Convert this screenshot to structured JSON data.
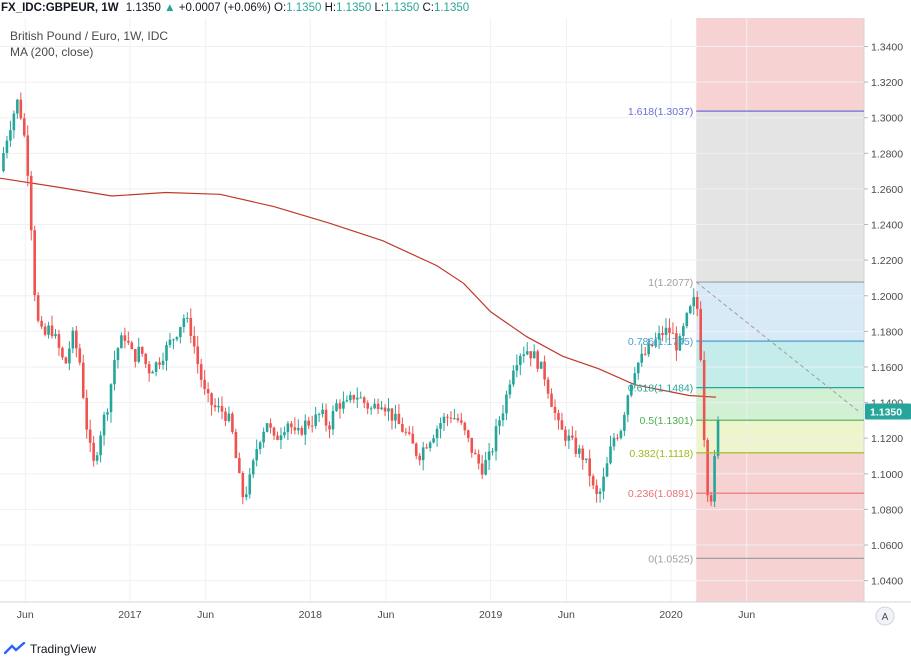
{
  "header": {
    "symbol": "FX_IDC:GBPEUR, 1W",
    "last": "1.1350",
    "arrow": "▲",
    "change": "+0.0007 (+0.06%)",
    "o_label": "O:",
    "o": "1.1350",
    "h_label": "H:",
    "h": "1.1350",
    "l_label": "L:",
    "l": "1.1350",
    "c_label": "C:",
    "c": "1.1350"
  },
  "legend": {
    "title": "British Pound / Euro, 1W, IDC",
    "indicator": "MA (200, close)"
  },
  "footer": {
    "brand": "TradingView"
  },
  "auto_scale": "A",
  "price_badge": "1.1350",
  "colors": {
    "up": "#26a69a",
    "down": "#ef5350",
    "ma": "#c0392b",
    "grid": "#eef0f3",
    "axis_text": "#4a4a4a",
    "badge": "#26a69a"
  },
  "chart_data": {
    "type": "candlestick",
    "title": "British Pound / Euro, 1W, IDC",
    "y_ticks": [
      "1.3400",
      "1.3200",
      "1.3000",
      "1.2800",
      "1.2600",
      "1.2400",
      "1.2200",
      "1.2000",
      "1.1800",
      "1.1600",
      "1.1400",
      "1.1200",
      "1.1000",
      "1.0800",
      "1.0600",
      "1.0400"
    ],
    "ylim": [
      1.028,
      1.356
    ],
    "x_ticks": [
      {
        "label": "Jun",
        "x": 2016.42
      },
      {
        "label": "2017",
        "x": 2017.0
      },
      {
        "label": "Jun",
        "x": 2017.42
      },
      {
        "label": "2018",
        "x": 2018.0
      },
      {
        "label": "Jun",
        "x": 2018.42
      },
      {
        "label": "2019",
        "x": 2019.0
      },
      {
        "label": "Jun",
        "x": 2019.42
      },
      {
        "label": "2020",
        "x": 2020.0
      },
      {
        "label": "Jun",
        "x": 2020.42
      }
    ],
    "xlim": [
      2016.28,
      2021.07
    ],
    "close_anchors": [
      [
        2016.28,
        1.27
      ],
      [
        2016.31,
        1.286
      ],
      [
        2016.35,
        1.301
      ],
      [
        2016.38,
        1.31
      ],
      [
        2016.41,
        1.294
      ],
      [
        2016.44,
        1.265
      ],
      [
        2016.48,
        1.188
      ],
      [
        2016.52,
        1.176
      ],
      [
        2016.56,
        1.183
      ],
      [
        2016.6,
        1.172
      ],
      [
        2016.64,
        1.16
      ],
      [
        2016.68,
        1.178
      ],
      [
        2016.72,
        1.165
      ],
      [
        2016.77,
        1.118
      ],
      [
        2016.8,
        1.105
      ],
      [
        2016.84,
        1.125
      ],
      [
        2016.88,
        1.14
      ],
      [
        2016.92,
        1.168
      ],
      [
        2016.97,
        1.178
      ],
      [
        2017.02,
        1.165
      ],
      [
        2017.06,
        1.17
      ],
      [
        2017.1,
        1.158
      ],
      [
        2017.15,
        1.162
      ],
      [
        2017.2,
        1.17
      ],
      [
        2017.25,
        1.178
      ],
      [
        2017.3,
        1.188
      ],
      [
        2017.34,
        1.18
      ],
      [
        2017.38,
        1.16
      ],
      [
        2017.42,
        1.143
      ],
      [
        2017.47,
        1.137
      ],
      [
        2017.52,
        1.135
      ],
      [
        2017.56,
        1.128
      ],
      [
        2017.6,
        1.1
      ],
      [
        2017.63,
        1.086
      ],
      [
        2017.67,
        1.098
      ],
      [
        2017.71,
        1.118
      ],
      [
        2017.76,
        1.13
      ],
      [
        2017.8,
        1.118
      ],
      [
        2017.84,
        1.125
      ],
      [
        2017.88,
        1.13
      ],
      [
        2017.92,
        1.12
      ],
      [
        2017.97,
        1.128
      ],
      [
        2018.02,
        1.13
      ],
      [
        2018.06,
        1.134
      ],
      [
        2018.1,
        1.126
      ],
      [
        2018.15,
        1.14
      ],
      [
        2018.2,
        1.138
      ],
      [
        2018.25,
        1.145
      ],
      [
        2018.3,
        1.14
      ],
      [
        2018.34,
        1.136
      ],
      [
        2018.39,
        1.142
      ],
      [
        2018.43,
        1.136
      ],
      [
        2018.47,
        1.13
      ],
      [
        2018.52,
        1.124
      ],
      [
        2018.56,
        1.117
      ],
      [
        2018.6,
        1.11
      ],
      [
        2018.64,
        1.117
      ],
      [
        2018.69,
        1.124
      ],
      [
        2018.73,
        1.13
      ],
      [
        2018.78,
        1.133
      ],
      [
        2018.82,
        1.13
      ],
      [
        2018.86,
        1.122
      ],
      [
        2018.91,
        1.11
      ],
      [
        2018.95,
        1.103
      ],
      [
        2019.0,
        1.11
      ],
      [
        2019.04,
        1.128
      ],
      [
        2019.08,
        1.14
      ],
      [
        2019.12,
        1.16
      ],
      [
        2019.16,
        1.168
      ],
      [
        2019.2,
        1.17
      ],
      [
        2019.25,
        1.165
      ],
      [
        2019.3,
        1.155
      ],
      [
        2019.34,
        1.14
      ],
      [
        2019.38,
        1.125
      ],
      [
        2019.43,
        1.12
      ],
      [
        2019.47,
        1.114
      ],
      [
        2019.51,
        1.11
      ],
      [
        2019.55,
        1.1
      ],
      [
        2019.58,
        1.086
      ],
      [
        2019.61,
        1.09
      ],
      [
        2019.64,
        1.102
      ],
      [
        2019.68,
        1.12
      ],
      [
        2019.72,
        1.125
      ],
      [
        2019.76,
        1.145
      ],
      [
        2019.8,
        1.16
      ],
      [
        2019.84,
        1.165
      ],
      [
        2019.88,
        1.17
      ],
      [
        2019.92,
        1.175
      ],
      [
        2019.96,
        1.18
      ],
      [
        2020.0,
        1.18
      ],
      [
        2020.04,
        1.17
      ],
      [
        2020.08,
        1.185
      ],
      [
        2020.12,
        1.195
      ],
      [
        2020.14,
        1.2
      ],
      [
        2020.17,
        1.16
      ],
      [
        2020.19,
        1.105
      ],
      [
        2020.21,
        1.085
      ],
      [
        2020.23,
        1.089
      ],
      [
        2020.25,
        1.12
      ],
      [
        2020.27,
        1.135
      ]
    ],
    "ma_200": [
      [
        2016.28,
        1.266
      ],
      [
        2016.6,
        1.261
      ],
      [
        2016.9,
        1.256
      ],
      [
        2017.2,
        1.258
      ],
      [
        2017.5,
        1.257
      ],
      [
        2017.8,
        1.25
      ],
      [
        2018.1,
        1.241
      ],
      [
        2018.4,
        1.231
      ],
      [
        2018.7,
        1.217
      ],
      [
        2018.85,
        1.207
      ],
      [
        2019.0,
        1.191
      ],
      [
        2019.2,
        1.177
      ],
      [
        2019.4,
        1.166
      ],
      [
        2019.6,
        1.159
      ],
      [
        2019.8,
        1.15
      ],
      [
        2020.0,
        1.146
      ],
      [
        2020.1,
        1.144
      ],
      [
        2020.25,
        1.143
      ]
    ],
    "fib_retracement": {
      "x_start": 2020.14,
      "levels": [
        {
          "ratio": "1.618",
          "price": 1.3037,
          "label": "1.618(1.3037)",
          "color": "#6c6cdb",
          "fill": "#cfcff3"
        },
        {
          "ratio": "1",
          "price": 1.2077,
          "label": "1(1.2077)",
          "color": "#9e9e9e",
          "fill": "#e4e4e4"
        },
        {
          "ratio": "0.786",
          "price": 1.1745,
          "label": "0.786(1.1745)",
          "color": "#4a9bd0",
          "fill": "#d8eaf6"
        },
        {
          "ratio": "0.618",
          "price": 1.1484,
          "label": "0.618(1.1484)",
          "color": "#26a69a",
          "fill": "#c4ecea"
        },
        {
          "ratio": "0.5",
          "price": 1.1301,
          "label": "0.5(1.1301)",
          "color": "#4caf50",
          "fill": "#d2f0d4"
        },
        {
          "ratio": "0.382",
          "price": 1.1118,
          "label": "0.382(1.1118)",
          "color": "#9bb91f",
          "fill": "#eef5cc"
        },
        {
          "ratio": "0.236",
          "price": 1.0891,
          "label": "0.236(1.0891)",
          "color": "#e57373",
          "fill": "#f7d2d2"
        },
        {
          "ratio": "0",
          "price": 1.0525,
          "label": "0(1.0525)",
          "color": "#9e9e9e",
          "fill": "#f7d2d2"
        }
      ]
    }
  }
}
